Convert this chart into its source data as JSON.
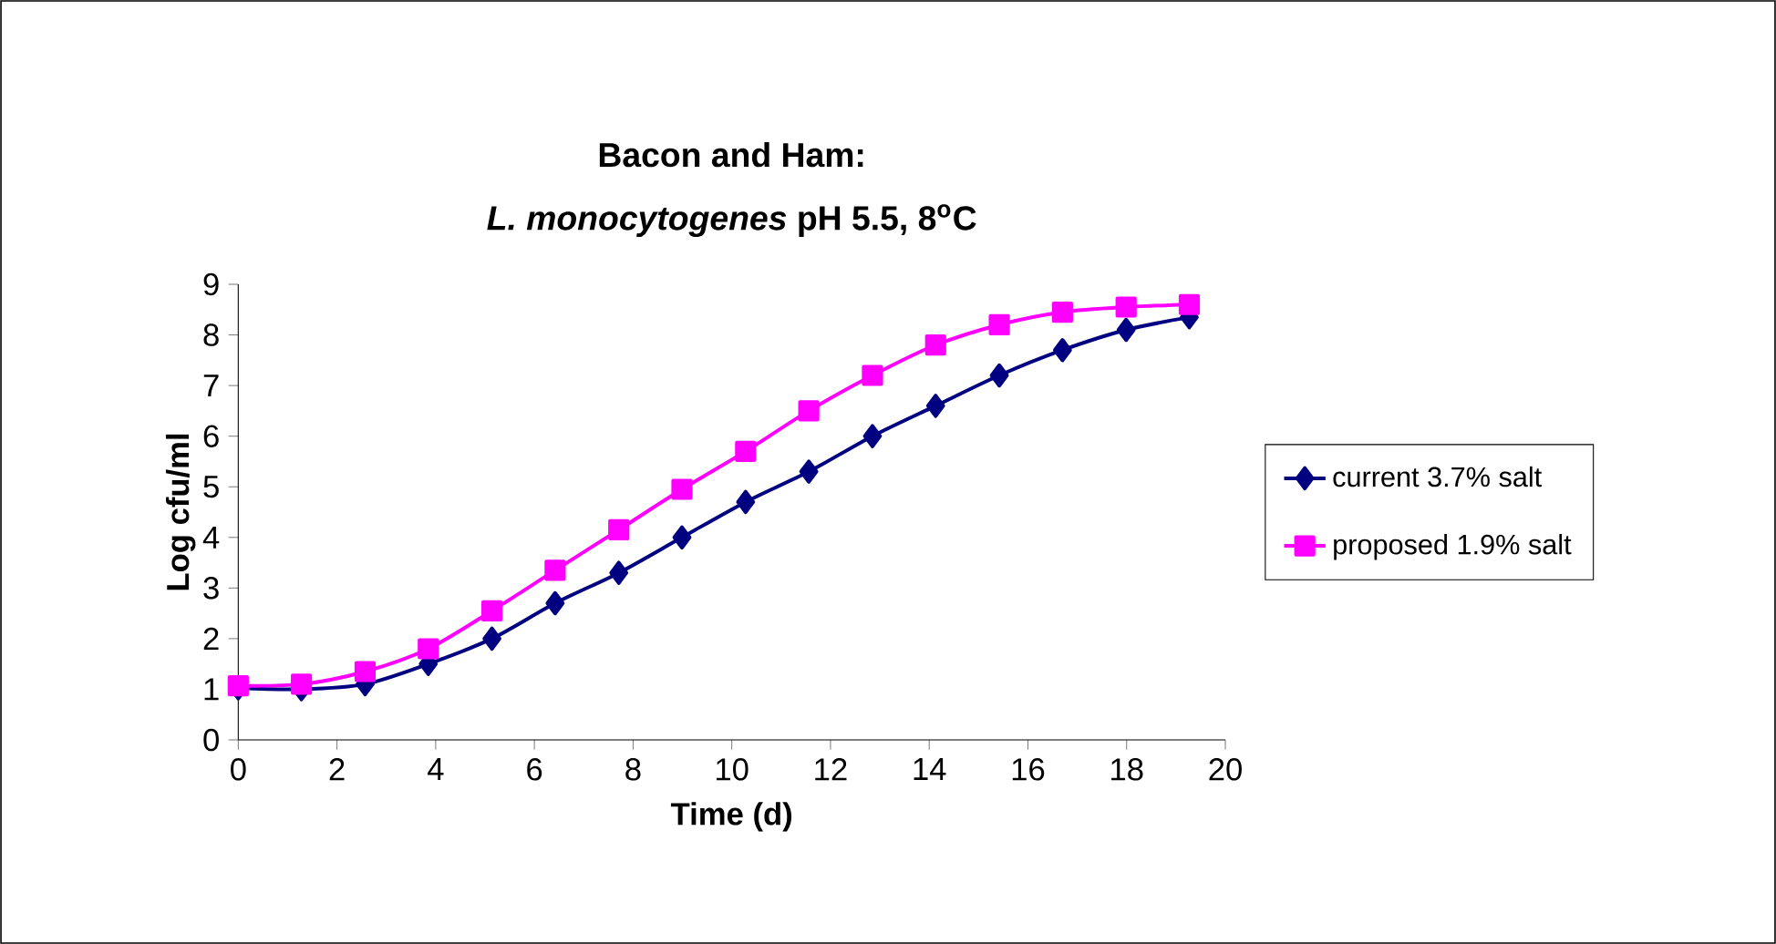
{
  "chart_data": {
    "type": "line",
    "title": "Bacon and Ham:",
    "subtitle": "*L. monocytogenes* pH 5.5, 8$^{o}$C",
    "xlabel": "Time (d)",
    "ylabel": "Log cfu/ml",
    "x": [
      0,
      1.28,
      2.57,
      3.85,
      5.14,
      6.42,
      7.71,
      8.99,
      10.28,
      11.56,
      12.85,
      14.13,
      15.42,
      16.7,
      17.99,
      19.27
    ],
    "series": [
      {
        "name": "current 3.7% salt",
        "color": "#000080",
        "marker": "diamond",
        "values": [
          1.02,
          1.0,
          1.1,
          1.5,
          2.0,
          2.7,
          3.3,
          4.0,
          4.7,
          5.3,
          6.0,
          6.6,
          7.2,
          7.7,
          8.1,
          8.35
        ]
      },
      {
        "name": "proposed 1.9% salt",
        "color": "#ff00ff",
        "marker": "square",
        "values": [
          1.07,
          1.1,
          1.35,
          1.8,
          2.55,
          3.35,
          4.15,
          4.95,
          5.7,
          6.5,
          7.2,
          7.8,
          8.2,
          8.45,
          8.55,
          8.6
        ]
      }
    ],
    "xlim": [
      0,
      20
    ],
    "xticks": [
      0,
      2,
      4,
      6,
      8,
      10,
      12,
      14,
      16,
      18,
      20
    ],
    "ylim": [
      0,
      9
    ],
    "yticks": [
      0,
      1,
      2,
      3,
      4,
      5,
      6,
      7,
      8,
      9
    ],
    "legend": "right",
    "line_style": "solid"
  }
}
